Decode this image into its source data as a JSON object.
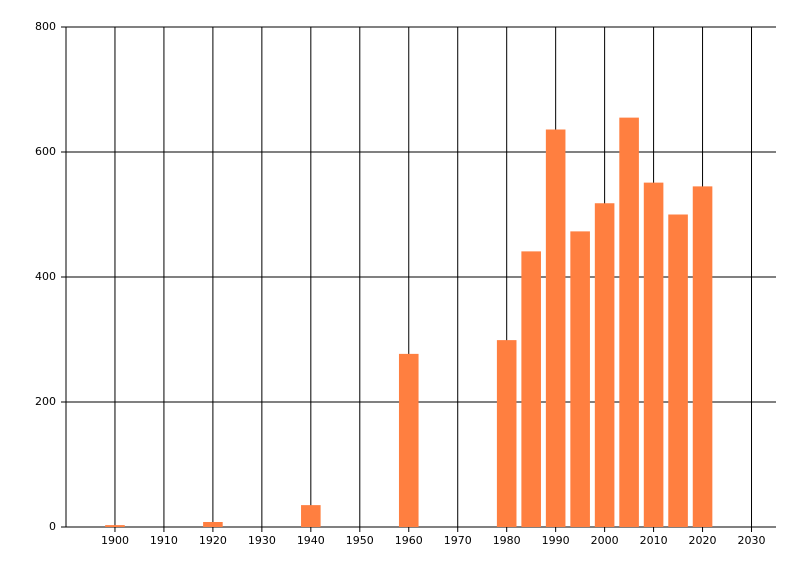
{
  "chart_data": {
    "type": "bar",
    "x": [
      1900,
      1920,
      1940,
      1960,
      1980,
      1985,
      1990,
      1995,
      2000,
      2005,
      2010,
      2015,
      2020
    ],
    "values": [
      3,
      8,
      35,
      277,
      299,
      441,
      636,
      473,
      518,
      655,
      551,
      500,
      545
    ],
    "color": "#ff7f40",
    "xlim": [
      1890,
      2035
    ],
    "xticks": [
      1900,
      1910,
      1920,
      1930,
      1940,
      1950,
      1960,
      1970,
      1980,
      1990,
      2000,
      2010,
      2020,
      2030
    ],
    "ylim": [
      0,
      800
    ],
    "yticks": [
      0,
      200,
      400,
      600,
      800
    ],
    "grid": true
  }
}
